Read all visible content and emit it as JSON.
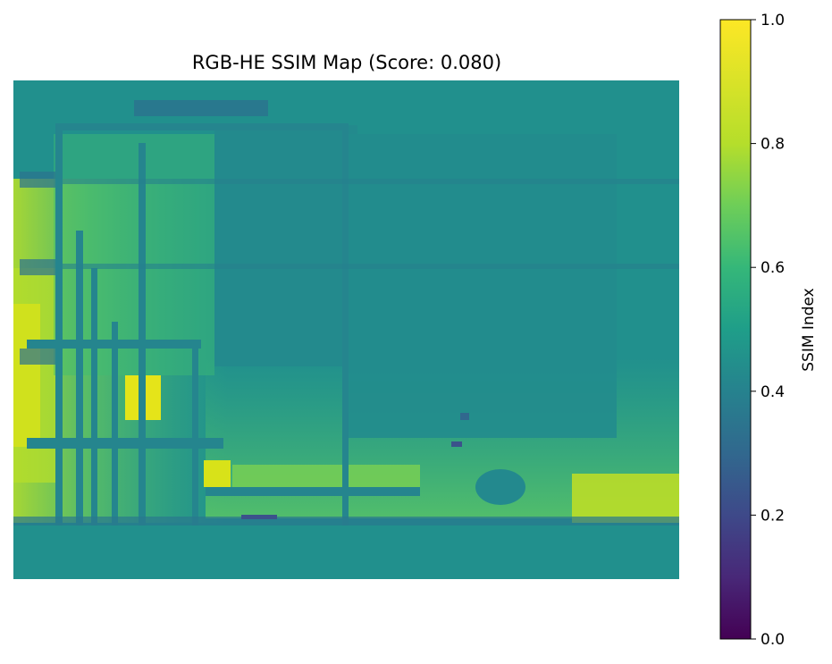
{
  "chart_data": {
    "type": "heatmap",
    "title": "RGB-HE SSIM Map (Score: 0.080)",
    "xlabel": "",
    "ylabel": "",
    "axes_visible": false,
    "colormap": "viridis",
    "colorbar": {
      "label": "SSIM Index",
      "range": [
        0.0,
        1.0
      ],
      "ticks": [
        0.0,
        0.2,
        0.4,
        0.6,
        0.8,
        1.0
      ],
      "tick_labels": [
        "0.0",
        "0.2",
        "0.4",
        "0.6",
        "0.8",
        "1.0"
      ]
    },
    "dominant_value": 0.55,
    "value_range_observed": [
      0.3,
      1.0
    ],
    "colors": {
      "background_map": "#21908d",
      "high": "#fde725",
      "mid_high": "#7ad151",
      "low": "#3b528b"
    }
  }
}
